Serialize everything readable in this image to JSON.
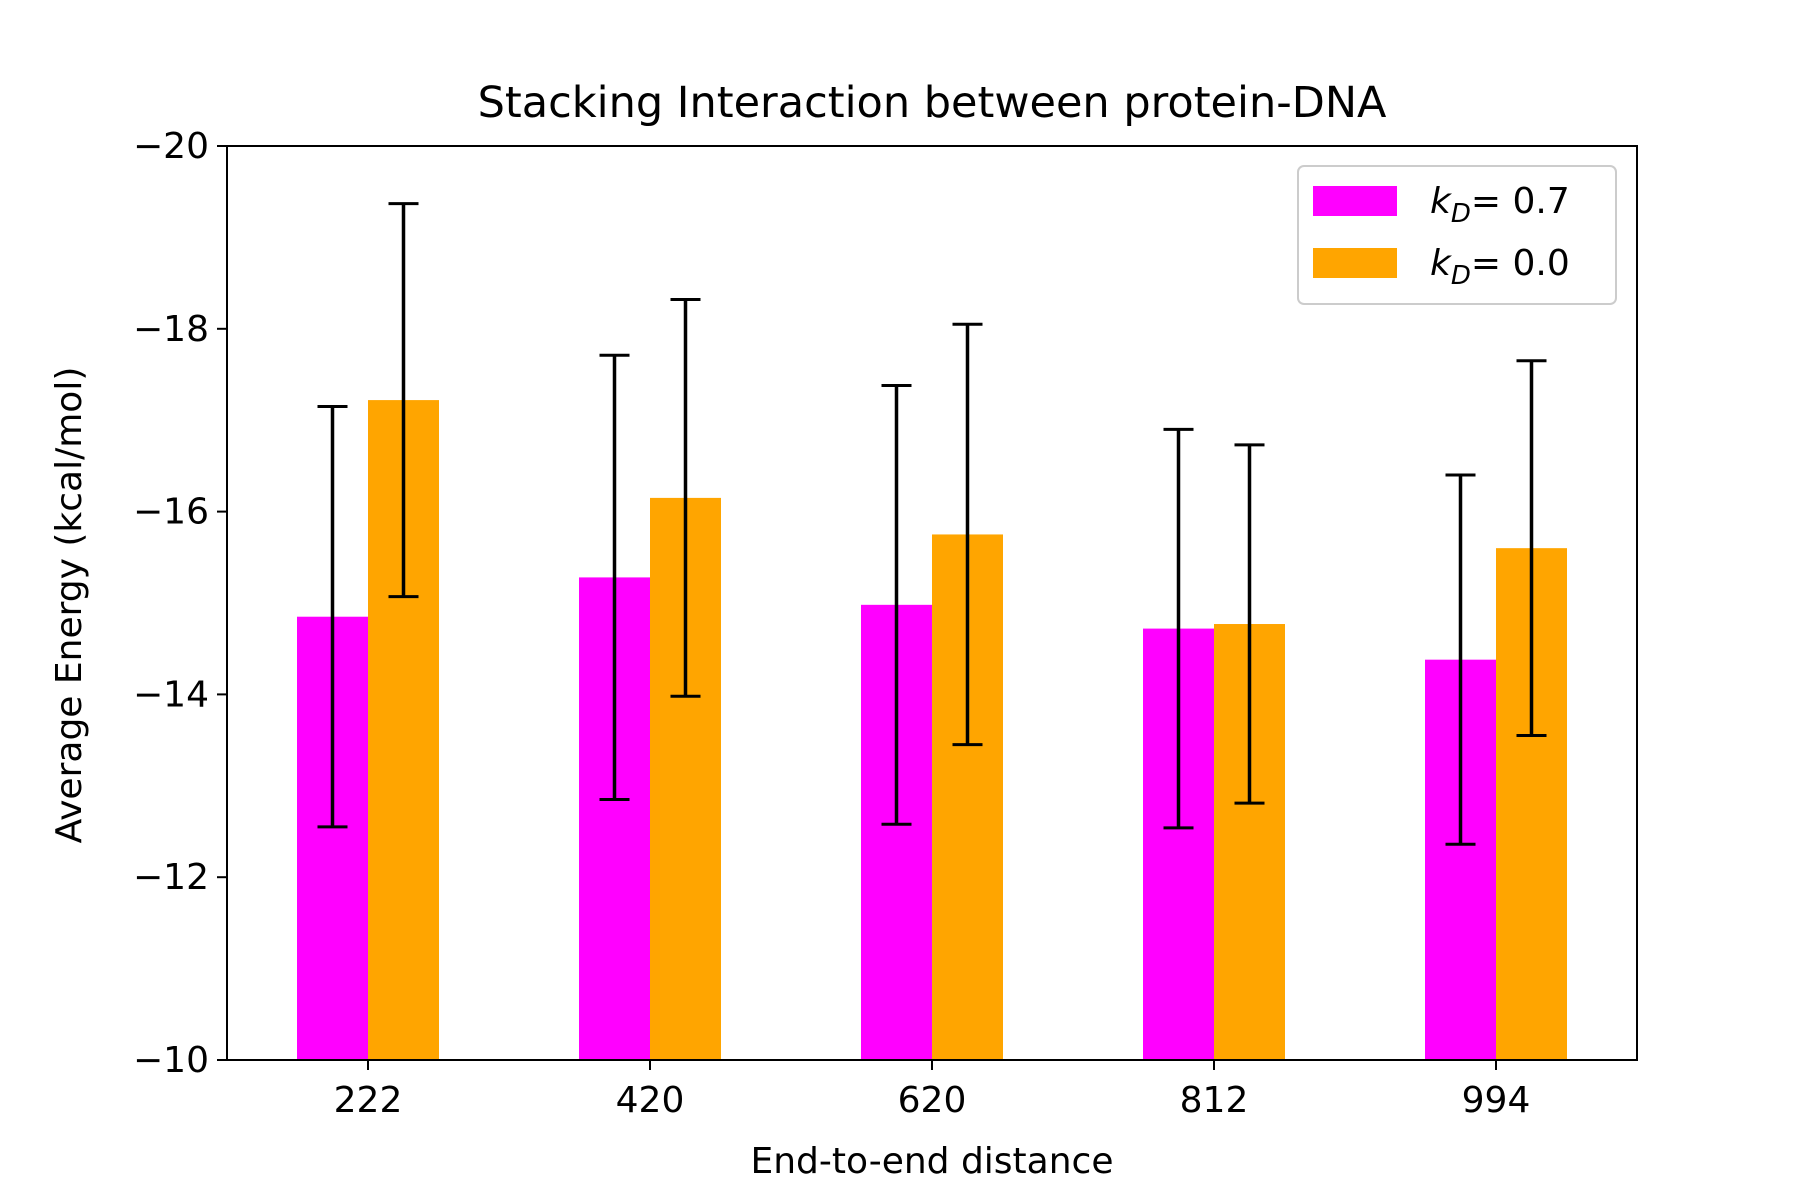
{
  "chart_data": {
    "type": "bar",
    "title": "Stacking Interaction between protein-DNA",
    "xlabel": "End-to-end distance",
    "ylabel": "Average Energy (kcal/mol)",
    "categories": [
      "222",
      "420",
      "620",
      "812",
      "994"
    ],
    "ylim": [
      -10,
      -20
    ],
    "yticks": [
      -20,
      -18,
      -16,
      -14,
      -12,
      -10
    ],
    "ytick_labels": [
      "−20",
      "−18",
      "−16",
      "−14",
      "−12",
      "−10"
    ],
    "grid": false,
    "legend_position": "top-right",
    "series": [
      {
        "name": "k_D = 0.7",
        "legend_symbol": "k",
        "legend_subscript": "D",
        "legend_value": "= 0.7",
        "color": "#ff00ff",
        "values": [
          -14.85,
          -15.28,
          -14.98,
          -14.72,
          -14.38
        ],
        "errors": [
          2.3,
          2.43,
          2.4,
          2.18,
          2.02
        ]
      },
      {
        "name": "k_D = 0.0",
        "legend_symbol": "k",
        "legend_subscript": "D",
        "legend_value": "= 0.0",
        "color": "#ffa500",
        "values": [
          -17.22,
          -16.15,
          -15.75,
          -14.77,
          -15.6
        ],
        "errors": [
          2.15,
          2.17,
          2.3,
          1.96,
          2.05
        ]
      }
    ]
  }
}
